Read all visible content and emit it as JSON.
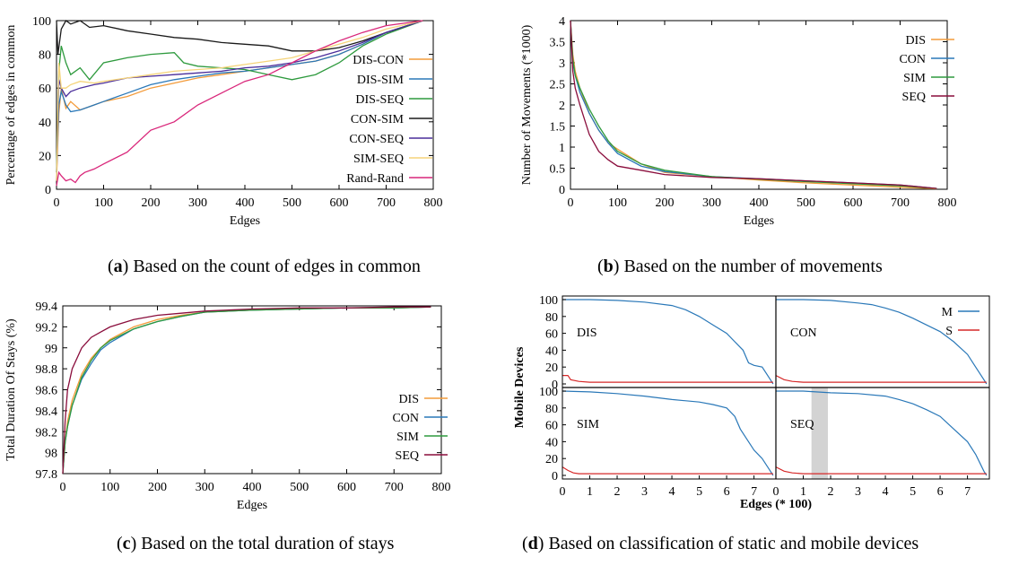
{
  "colors": {
    "DIS": "#f39b3a",
    "CON": "#2a78b8",
    "SIM": "#2e9a3e",
    "SEQ": "#8a0d3c",
    "DIS-CON": "#f39b3a",
    "DIS-SIM": "#2a78b8",
    "DIS-SEQ": "#2e9a3e",
    "CON-SIM": "#1a1a1a",
    "CON-SEQ": "#4a2d9a",
    "SIM-SEQ": "#f5d47a",
    "Rand-Rand": "#d9267a",
    "M": "#2a78b8",
    "S": "#d62828",
    "band": "#d3d3d3"
  },
  "captions": {
    "a": {
      "letter": "a",
      "text": " Based on the count of edges in common"
    },
    "b": {
      "letter": "b",
      "text": " Based on the number of movements"
    },
    "c": {
      "letter": "c",
      "text": " Based on the total duration of stays"
    },
    "d": {
      "letter": "d",
      "text": " Based on classification of static and mobile devices"
    }
  },
  "chart_data": [
    {
      "id": "a",
      "type": "line",
      "ylabel": "Percentage of edges in common",
      "xlabel": "Edges",
      "xlim": [
        0,
        800
      ],
      "ylim": [
        0,
        100
      ],
      "xticks": [
        "0",
        "100",
        "200",
        "300",
        "400",
        "500",
        "600",
        "700",
        "800"
      ],
      "yticks": [
        "0",
        "20",
        "40",
        "60",
        "80",
        "100"
      ],
      "legend": "right",
      "series": [
        {
          "name": "DIS-CON",
          "x": [
            0,
            5,
            10,
            20,
            30,
            50,
            80,
            100,
            150,
            200,
            250,
            300,
            350,
            400,
            450,
            500,
            550,
            600,
            650,
            700,
            778
          ],
          "y": [
            5,
            45,
            60,
            48,
            52,
            47,
            50,
            52,
            55,
            60,
            63,
            66,
            68,
            70,
            72,
            74,
            76,
            80,
            86,
            93,
            100
          ]
        },
        {
          "name": "DIS-SIM",
          "x": [
            0,
            5,
            10,
            20,
            30,
            50,
            80,
            100,
            150,
            200,
            250,
            300,
            350,
            400,
            450,
            500,
            550,
            600,
            650,
            700,
            778
          ],
          "y": [
            10,
            50,
            58,
            50,
            46,
            47,
            50,
            52,
            57,
            62,
            65,
            67,
            69,
            70,
            72,
            74,
            76,
            80,
            86,
            93,
            100
          ]
        },
        {
          "name": "DIS-SEQ",
          "x": [
            0,
            5,
            10,
            20,
            30,
            50,
            70,
            100,
            150,
            200,
            250,
            270,
            300,
            350,
            400,
            450,
            500,
            550,
            600,
            650,
            700,
            778
          ],
          "y": [
            10,
            70,
            85,
            75,
            68,
            72,
            65,
            75,
            78,
            80,
            81,
            75,
            73,
            72,
            71,
            68,
            65,
            68,
            75,
            85,
            92,
            100
          ]
        },
        {
          "name": "CON-SIM",
          "x": [
            0,
            3,
            10,
            20,
            30,
            50,
            70,
            100,
            150,
            200,
            250,
            300,
            350,
            400,
            450,
            500,
            550,
            600,
            650,
            700,
            778
          ],
          "y": [
            100,
            80,
            95,
            100,
            98,
            100,
            96,
            97,
            94,
            92,
            90,
            89,
            87,
            86,
            85,
            82,
            82,
            84,
            88,
            93,
            100
          ]
        },
        {
          "name": "CON-SEQ",
          "x": [
            0,
            5,
            10,
            20,
            30,
            50,
            80,
            100,
            150,
            200,
            250,
            300,
            350,
            400,
            450,
            500,
            550,
            600,
            650,
            700,
            778
          ],
          "y": [
            5,
            65,
            60,
            55,
            58,
            60,
            62,
            63,
            66,
            67,
            68,
            69,
            70,
            72,
            73,
            75,
            78,
            82,
            87,
            93,
            100
          ]
        },
        {
          "name": "SIM-SEQ",
          "x": [
            0,
            5,
            10,
            20,
            30,
            50,
            80,
            100,
            150,
            200,
            250,
            300,
            350,
            400,
            450,
            500,
            550,
            600,
            650,
            700,
            778
          ],
          "y": [
            5,
            75,
            60,
            60,
            62,
            64,
            63,
            64,
            66,
            68,
            70,
            71,
            72,
            74,
            76,
            78,
            82,
            86,
            90,
            95,
            100
          ]
        },
        {
          "name": "Rand-Rand",
          "x": [
            0,
            5,
            10,
            20,
            30,
            40,
            50,
            60,
            80,
            100,
            150,
            200,
            250,
            300,
            350,
            400,
            450,
            500,
            550,
            600,
            650,
            700,
            778
          ],
          "y": [
            2,
            10,
            8,
            5,
            6,
            4,
            8,
            10,
            12,
            15,
            22,
            35,
            40,
            50,
            57,
            64,
            68,
            75,
            82,
            88,
            93,
            97,
            100
          ]
        }
      ]
    },
    {
      "id": "b",
      "type": "line",
      "ylabel": "Number of Movements (*1000)",
      "xlabel": "Edges",
      "xlim": [
        0,
        800
      ],
      "ylim": [
        0,
        4
      ],
      "xticks": [
        "0",
        "100",
        "200",
        "300",
        "400",
        "500",
        "600",
        "700",
        "800"
      ],
      "yticks": [
        "0",
        "0.5",
        "1",
        "1.5",
        "2",
        "2.5",
        "3",
        "3.5",
        "4"
      ],
      "legend": "top-right",
      "series": [
        {
          "name": "DIS",
          "x": [
            0,
            5,
            10,
            20,
            40,
            60,
            80,
            100,
            150,
            200,
            300,
            400,
            500,
            600,
            700,
            778
          ],
          "y": [
            4.0,
            3.2,
            2.8,
            2.4,
            1.8,
            1.4,
            1.1,
            0.95,
            0.6,
            0.4,
            0.3,
            0.22,
            0.15,
            0.1,
            0.05,
            0.01
          ]
        },
        {
          "name": "CON",
          "x": [
            0,
            5,
            10,
            20,
            40,
            60,
            80,
            100,
            150,
            200,
            300,
            400,
            500,
            600,
            700,
            778
          ],
          "y": [
            4.0,
            3.0,
            2.7,
            2.3,
            1.8,
            1.4,
            1.1,
            0.85,
            0.55,
            0.42,
            0.3,
            0.25,
            0.2,
            0.15,
            0.1,
            0.02
          ]
        },
        {
          "name": "SIM",
          "x": [
            0,
            5,
            10,
            20,
            40,
            60,
            80,
            100,
            150,
            200,
            300,
            400,
            500,
            600,
            700,
            778
          ],
          "y": [
            4.0,
            3.1,
            2.7,
            2.4,
            1.9,
            1.5,
            1.15,
            0.9,
            0.6,
            0.45,
            0.3,
            0.24,
            0.18,
            0.13,
            0.08,
            0.02
          ]
        },
        {
          "name": "SEQ",
          "x": [
            0,
            5,
            10,
            20,
            40,
            60,
            80,
            100,
            150,
            200,
            300,
            400,
            500,
            600,
            700,
            778
          ],
          "y": [
            4.0,
            2.8,
            2.4,
            2.0,
            1.3,
            0.9,
            0.7,
            0.55,
            0.45,
            0.35,
            0.28,
            0.25,
            0.2,
            0.15,
            0.1,
            0.02
          ]
        }
      ]
    },
    {
      "id": "c",
      "type": "line",
      "ylabel": "Total Duration Of Stays (%)",
      "xlabel": "Edges",
      "xlim": [
        0,
        800
      ],
      "ylim": [
        97.8,
        99.4
      ],
      "xticks": [
        "0",
        "100",
        "200",
        "300",
        "400",
        "500",
        "600",
        "700",
        "800"
      ],
      "yticks": [
        "97.8",
        "98",
        "98.2",
        "98.4",
        "98.6",
        "98.8",
        "99",
        "99.2",
        "99.4"
      ],
      "legend": "right",
      "series": [
        {
          "name": "DIS",
          "x": [
            0,
            5,
            10,
            20,
            40,
            60,
            80,
            100,
            150,
            200,
            250,
            300,
            400,
            500,
            600,
            700,
            778
          ],
          "y": [
            97.8,
            98.1,
            98.3,
            98.5,
            98.75,
            98.9,
            99.0,
            99.08,
            99.2,
            99.27,
            99.31,
            99.34,
            99.36,
            99.37,
            99.38,
            99.38,
            99.39
          ]
        },
        {
          "name": "CON",
          "x": [
            0,
            5,
            10,
            20,
            40,
            60,
            80,
            100,
            150,
            200,
            250,
            300,
            400,
            500,
            600,
            700,
            778
          ],
          "y": [
            97.8,
            98.1,
            98.25,
            98.45,
            98.7,
            98.85,
            98.98,
            99.05,
            99.18,
            99.25,
            99.3,
            99.34,
            99.36,
            99.37,
            99.38,
            99.38,
            99.39
          ]
        },
        {
          "name": "SIM",
          "x": [
            0,
            5,
            10,
            20,
            40,
            60,
            80,
            100,
            150,
            200,
            250,
            300,
            400,
            500,
            600,
            700,
            778
          ],
          "y": [
            97.8,
            98.1,
            98.25,
            98.45,
            98.72,
            98.88,
            99.0,
            99.07,
            99.18,
            99.25,
            99.3,
            99.34,
            99.36,
            99.37,
            99.38,
            99.38,
            99.39
          ]
        },
        {
          "name": "SEQ",
          "x": [
            0,
            5,
            10,
            20,
            40,
            60,
            80,
            100,
            150,
            200,
            250,
            300,
            400,
            500,
            600,
            700,
            778
          ],
          "y": [
            97.8,
            98.3,
            98.6,
            98.8,
            99.0,
            99.1,
            99.15,
            99.2,
            99.27,
            99.31,
            99.33,
            99.35,
            99.37,
            99.38,
            99.38,
            99.39,
            99.39
          ]
        }
      ]
    },
    {
      "id": "d",
      "type": "line",
      "ylabel": "Mobile Devices",
      "xlabel": "Edges (* 100)",
      "xlim": [
        0,
        7.8
      ],
      "ylim": [
        0,
        100
      ],
      "xticks": [
        "0",
        "1",
        "2",
        "3",
        "4",
        "5",
        "6",
        "7"
      ],
      "yticks": [
        "0",
        "20",
        "40",
        "60",
        "80",
        "100"
      ],
      "legend": "top-right",
      "legend_entries": [
        "M",
        "S"
      ],
      "subplots": [
        {
          "label": "DIS",
          "M": {
            "x": [
              0,
              1,
              2,
              3,
              4,
              4.5,
              5,
              5.5,
              6,
              6.3,
              6.6,
              6.8,
              7,
              7.3,
              7.6,
              7.7
            ],
            "y": [
              100,
              100,
              99,
              97,
              93,
              88,
              80,
              70,
              60,
              50,
              40,
              25,
              22,
              20,
              5,
              0
            ]
          },
          "S": {
            "x": [
              0,
              0.2,
              0.3,
              0.6,
              1,
              2,
              3,
              4,
              5,
              6,
              7,
              7.7
            ],
            "y": [
              10,
              10,
              5,
              3,
              2,
              2,
              2,
              2,
              2,
              2,
              2,
              2
            ]
          }
        },
        {
          "label": "CON",
          "M": {
            "x": [
              0,
              1,
              2,
              3,
              3.5,
              4,
              4.5,
              5,
              5.5,
              6,
              6.5,
              7,
              7.3,
              7.6,
              7.7
            ],
            "y": [
              100,
              100,
              99,
              96,
              94,
              90,
              85,
              78,
              70,
              62,
              50,
              35,
              20,
              5,
              0
            ]
          },
          "S": {
            "x": [
              0,
              0.3,
              0.6,
              1,
              2,
              3,
              4,
              5,
              6,
              7,
              7.7
            ],
            "y": [
              10,
              5,
              3,
              2,
              2,
              2,
              2,
              2,
              2,
              2,
              2
            ]
          }
        },
        {
          "label": "SIM",
          "M": {
            "x": [
              0,
              1,
              2,
              3,
              4,
              5,
              5.5,
              6,
              6.3,
              6.5,
              6.8,
              7,
              7.3,
              7.6,
              7.7
            ],
            "y": [
              100,
              99,
              97,
              94,
              90,
              87,
              84,
              80,
              70,
              55,
              40,
              30,
              20,
              5,
              0
            ]
          },
          "S": {
            "x": [
              0,
              0.2,
              0.4,
              0.6,
              1,
              2,
              3,
              4,
              5,
              6,
              7,
              7.7
            ],
            "y": [
              10,
              6,
              3,
              2,
              2,
              2,
              2,
              2,
              2,
              2,
              2,
              2
            ]
          }
        },
        {
          "label": "SEQ",
          "band": [
            1.3,
            1.9
          ],
          "M": {
            "x": [
              0,
              1,
              2,
              3,
              4,
              4.5,
              5,
              5.5,
              6,
              6.5,
              7,
              7.3,
              7.6,
              7.7
            ],
            "y": [
              100,
              100,
              98,
              97,
              94,
              90,
              85,
              78,
              70,
              55,
              40,
              25,
              5,
              0
            ]
          },
          "S": {
            "x": [
              0,
              0.3,
              0.6,
              1,
              2,
              3,
              4,
              5,
              6,
              7,
              7.7
            ],
            "y": [
              10,
              5,
              3,
              2,
              2,
              2,
              2,
              2,
              2,
              2,
              2
            ]
          }
        }
      ]
    }
  ]
}
